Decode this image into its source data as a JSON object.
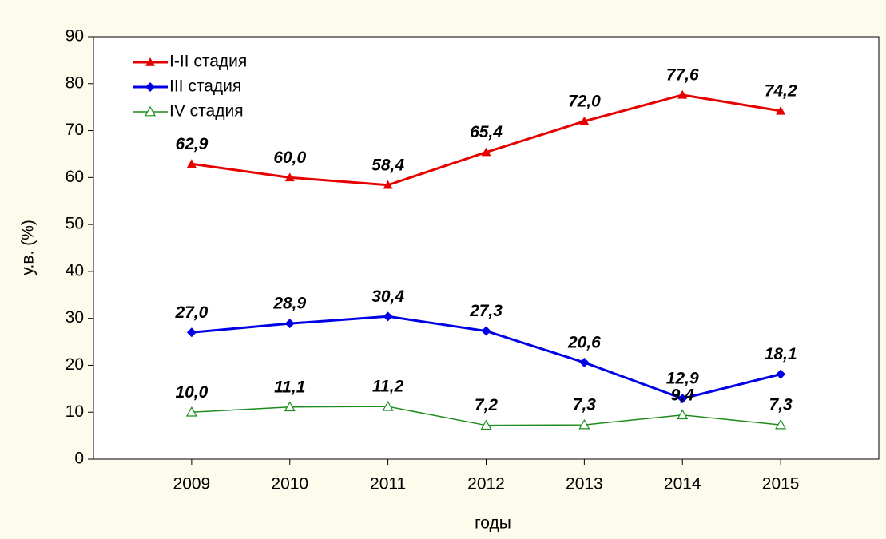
{
  "chart_data": {
    "type": "line",
    "x_label": "годы",
    "y_label": "у.в. (%)",
    "x": [
      2009,
      2010,
      2011,
      2012,
      2013,
      2014,
      2015
    ],
    "xlim": [
      2008,
      2016
    ],
    "xticks": [
      2009,
      2010,
      2011,
      2012,
      2013,
      2014,
      2015
    ],
    "ylim": [
      0,
      90
    ],
    "yticks": [
      0,
      10,
      20,
      30,
      40,
      50,
      60,
      70,
      80,
      90
    ],
    "legend": "upper left",
    "series": [
      {
        "name": "I-II стадия",
        "color": "#e60000",
        "marker": "triangle",
        "width": 3,
        "values": [
          62.9,
          60.0,
          58.4,
          65.4,
          72.0,
          77.6,
          74.2
        ],
        "value_labels": [
          "62,9",
          "60,0",
          "58,4",
          "65,4",
          "72,0",
          "77,6",
          "74,2"
        ]
      },
      {
        "name": "III стадия",
        "color": "#0000e6",
        "marker": "diamond",
        "width": 3,
        "values": [
          27.0,
          28.9,
          30.4,
          27.3,
          20.6,
          12.9,
          18.1
        ],
        "value_labels": [
          "27,0",
          "28,9",
          "30,4",
          "27,3",
          "20,6",
          "12,9",
          "18,1"
        ]
      },
      {
        "name": "IV стадия",
        "color": "#1e8c1e",
        "marker": "triangle-open",
        "width": 1.5,
        "values": [
          10.0,
          11.1,
          11.2,
          7.2,
          7.3,
          9.4,
          7.3
        ],
        "value_labels": [
          "10,0",
          "11,1",
          "11,2",
          "7,2",
          "7,3",
          "9,4",
          "7,3"
        ]
      }
    ]
  }
}
